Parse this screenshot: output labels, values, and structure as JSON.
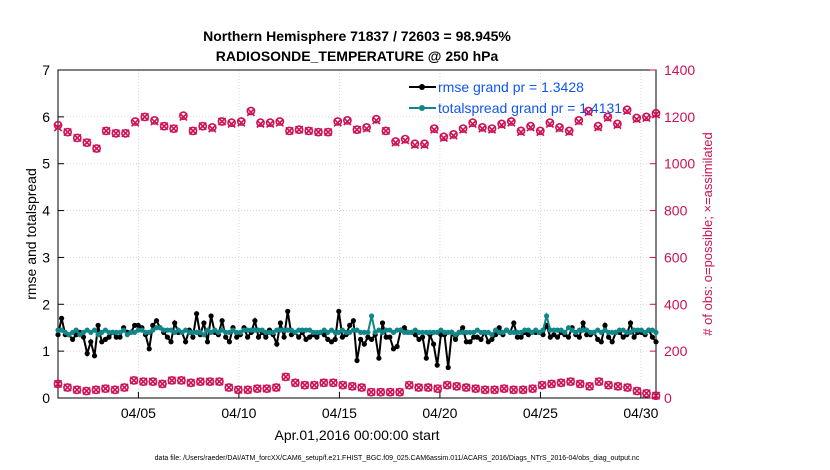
{
  "chart_data": {
    "type": "line",
    "title": [
      "Northern Hemisphere 71837 / 72603 = 98.945%",
      "RADIOSONDE_TEMPERATURE @ 250 hPa"
    ],
    "xlabel": "Apr.01,2016 00:00:00 start",
    "ylabel": "rmse and totalspread",
    "ylabel_right": "# of obs: o=possible; ×=assimilated",
    "footer": "data file: /Users/raeder/DAI/ATM_forcXX/CAM6_setup/f.e21.FHIST_BGC.f09_025.CAM6assim.011/ACARS_2016/Diags_NTrS_2016-04/obs_diag_output.nc",
    "xlim": [
      1,
      30.75
    ],
    "ylim": [
      0,
      7
    ],
    "ylim_right": [
      0,
      1400
    ],
    "x_ticks": [
      5,
      10,
      15,
      20,
      25,
      30
    ],
    "x_tick_labels": [
      "04/05",
      "04/10",
      "04/15",
      "04/20",
      "04/25",
      "04/30"
    ],
    "y_ticks": [
      "0",
      "1",
      "2",
      "3",
      "4",
      "5",
      "6",
      "7"
    ],
    "y_ticks_right": [
      "0",
      "200",
      "400",
      "600",
      "800",
      "1000",
      "1200",
      "1400"
    ],
    "grid": true,
    "legend_placement": "top-right",
    "series": [
      {
        "name": "rmse grand pr = 1.3428",
        "axis": "left",
        "color": "#000000",
        "marker": "dot",
        "values": [
          1.35,
          1.7,
          1.35,
          1.35,
          1.25,
          1.35,
          1.4,
          1.3,
          0.95,
          1.2,
          0.9,
          1.55,
          1.2,
          1.25,
          1.3,
          1.4,
          1.3,
          1.3,
          1.5,
          1.4,
          1.4,
          1.55,
          1.55,
          1.5,
          1.35,
          1.05,
          1.55,
          1.65,
          1.5,
          1.4,
          1.3,
          1.2,
          1.6,
          1.4,
          1.4,
          1.2,
          1.45,
          1.3,
          1.8,
          1.35,
          1.6,
          1.2,
          1.75,
          1.4,
          1.35,
          1.65,
          1.3,
          1.2,
          1.5,
          1.3,
          1.35,
          1.5,
          1.3,
          1.4,
          1.65,
          1.3,
          1.4,
          1.3,
          1.45,
          1.35,
          1.15,
          1.6,
          1.3,
          1.85,
          1.35,
          1.4,
          1.3,
          1.4,
          1.25,
          1.3,
          1.35,
          1.3,
          1.4,
          1.35,
          1.25,
          1.2,
          1.25,
          1.85,
          1.3,
          1.35,
          1.55,
          1.65,
          0.8,
          1.25,
          1.15,
          1.3,
          1.25,
          1.35,
          0.85,
          1.6,
          1.3,
          1.3,
          1.05,
          1.1,
          1.45,
          1.5,
          1.4,
          1.4,
          1.35,
          1.25,
          1.3,
          0.85,
          1.35,
          1.15,
          0.7,
          1.35,
          1.35,
          0.65,
          1.4,
          1.25,
          1.4,
          1.5,
          1.2,
          1.2,
          1.3,
          1.3,
          1.25,
          1.4,
          1.2,
          1.25,
          1.35,
          1.5,
          1.35,
          1.45,
          1.4,
          1.6,
          1.3,
          1.3,
          1.4,
          1.35,
          1.4,
          1.4,
          1.4,
          1.35,
          1.55,
          1.3,
          1.35,
          1.3,
          1.4,
          1.35,
          1.3,
          1.5,
          1.35,
          1.3,
          1.6,
          1.35,
          1.35,
          1.4,
          1.25,
          1.2,
          1.55,
          1.3,
          1.2,
          1.4,
          1.4,
          1.3,
          1.35,
          1.6,
          1.3,
          1.4,
          1.4,
          1.35,
          1.45,
          1.3,
          1.2
        ]
      },
      {
        "name": "totalspread grand pr = 1.4131",
        "axis": "left",
        "color": "#11878a",
        "marker": "dot",
        "values": [
          1.45,
          1.45,
          1.4,
          1.35,
          1.4,
          1.45,
          1.35,
          1.4,
          1.45,
          1.4,
          1.45,
          1.35,
          1.4,
          1.45,
          1.4,
          1.4,
          1.4,
          1.4,
          1.45,
          1.35,
          1.4,
          1.4,
          1.45,
          1.45,
          1.4,
          1.4,
          1.45,
          1.5,
          1.5,
          1.45,
          1.45,
          1.45,
          1.4,
          1.45,
          1.4,
          1.45,
          1.4,
          1.4,
          1.4,
          1.4,
          1.35,
          1.45,
          1.4,
          1.45,
          1.4,
          1.45,
          1.4,
          1.4,
          1.45,
          1.4,
          1.4,
          1.45,
          1.45,
          1.45,
          1.45,
          1.45,
          1.45,
          1.4,
          1.4,
          1.4,
          1.45,
          1.45,
          1.45,
          1.45,
          1.45,
          1.4,
          1.45,
          1.45,
          1.45,
          1.45,
          1.4,
          1.4,
          1.4,
          1.45,
          1.4,
          1.45,
          1.4,
          1.4,
          1.45,
          1.4,
          1.4,
          1.45,
          1.45,
          1.4,
          1.4,
          1.4,
          1.75,
          1.4,
          1.45,
          1.4,
          1.45,
          1.45,
          1.4,
          1.45,
          1.45,
          1.4,
          1.4,
          1.4,
          1.45,
          1.4,
          1.4,
          1.4,
          1.4,
          1.4,
          1.4,
          1.45,
          1.4,
          1.4,
          1.4,
          1.35,
          1.4,
          1.4,
          1.4,
          1.4,
          1.4,
          1.45,
          1.4,
          1.4,
          1.4,
          1.35,
          1.45,
          1.4,
          1.4,
          1.45,
          1.4,
          1.4,
          1.4,
          1.4,
          1.45,
          1.45,
          1.4,
          1.45,
          1.4,
          1.45,
          1.75,
          1.45,
          1.45,
          1.45,
          1.45,
          1.4,
          1.5,
          1.45,
          1.4,
          1.45,
          1.45,
          1.45,
          1.4,
          1.4,
          1.45,
          1.4,
          1.45,
          1.4,
          1.4,
          1.4,
          1.45,
          1.45,
          1.4,
          1.4,
          1.45,
          1.45,
          1.45,
          1.4,
          1.45,
          1.45,
          1.4
        ]
      },
      {
        "name": "possible",
        "axis": "right",
        "color": "#cc1155",
        "marker": "circle",
        "values": [
          1165,
          1135,
          1110,
          1090,
          1065,
          1140,
          1130,
          1130,
          1180,
          1200,
          1185,
          1160,
          1150,
          1205,
          1140,
          1160,
          1155,
          1180,
          1175,
          1180,
          1225,
          1175,
          1175,
          1180,
          1140,
          1145,
          1140,
          1135,
          1135,
          1180,
          1185,
          1145,
          1155,
          1190,
          1140,
          1095,
          1105,
          1085,
          1085,
          1150,
          1115,
          1125,
          1150,
          1175,
          1155,
          1150,
          1170,
          1180,
          1140,
          1160,
          1140,
          1175,
          1155,
          1140,
          1185,
          1225,
          1160,
          1200,
          1170,
          1230,
          1195,
          1200,
          1215
        ]
      },
      {
        "name": "assimilated",
        "axis": "right",
        "color": "#cc1155",
        "marker": "cross",
        "values": [
          1155,
          1135,
          1110,
          1090,
          1065,
          1140,
          1130,
          1130,
          1175,
          1200,
          1180,
          1160,
          1150,
          1200,
          1140,
          1160,
          1150,
          1180,
          1170,
          1175,
          1220,
          1170,
          1170,
          1175,
          1140,
          1145,
          1140,
          1135,
          1135,
          1175,
          1180,
          1145,
          1150,
          1185,
          1140,
          1090,
          1100,
          1080,
          1080,
          1145,
          1110,
          1120,
          1145,
          1170,
          1150,
          1145,
          1165,
          1175,
          1135,
          1155,
          1135,
          1170,
          1150,
          1135,
          1180,
          1220,
          1155,
          1195,
          1165,
          1225,
          1190,
          1195,
          1210
        ]
      },
      {
        "name": "possible-low",
        "axis": "right",
        "color": "#cc1155",
        "marker": "circle",
        "values": [
          60,
          45,
          35,
          30,
          35,
          40,
          35,
          45,
          75,
          70,
          70,
          60,
          75,
          75,
          65,
          70,
          70,
          70,
          45,
          35,
          35,
          40,
          40,
          45,
          90,
          65,
          55,
          55,
          65,
          65,
          55,
          50,
          45,
          25,
          25,
          25,
          25,
          55,
          45,
          45,
          40,
          55,
          50,
          45,
          40,
          35,
          35,
          40,
          35,
          35,
          40,
          55,
          60,
          65,
          70,
          60,
          50,
          70,
          55,
          50,
          45,
          30,
          20,
          10
        ]
      },
      {
        "name": "assimilated-low",
        "axis": "right",
        "color": "#cc1155",
        "marker": "cross",
        "values": [
          60,
          45,
          35,
          30,
          35,
          40,
          35,
          45,
          75,
          70,
          70,
          60,
          75,
          75,
          65,
          70,
          70,
          70,
          45,
          35,
          35,
          40,
          40,
          45,
          90,
          65,
          55,
          55,
          65,
          65,
          55,
          50,
          45,
          25,
          25,
          25,
          25,
          55,
          45,
          45,
          40,
          55,
          50,
          45,
          40,
          35,
          35,
          40,
          35,
          35,
          40,
          55,
          60,
          65,
          70,
          60,
          50,
          70,
          55,
          50,
          45,
          30,
          20,
          10
        ]
      }
    ],
    "legend": [
      {
        "label": "rmse grand pr = 1.3428",
        "color": "#000000"
      },
      {
        "label": "totalspread grand pr = 1.4131",
        "color": "#11878a"
      }
    ]
  }
}
